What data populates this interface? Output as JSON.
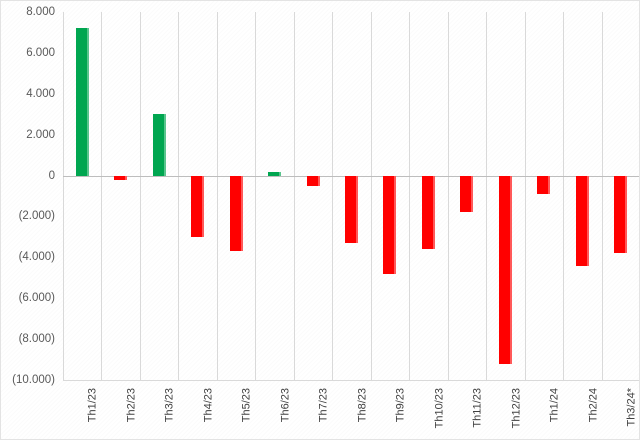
{
  "chart_style": {
    "background": "#ffffff",
    "border_color": "#e3e3e3",
    "gridline_color": "#d9d9d9",
    "zero_line_color": "#bdbdbd",
    "axis_text_color": "#595959",
    "positive_color": "#00a650",
    "negative_color": "#ff0000"
  },
  "chart_data": {
    "type": "bar",
    "title": "",
    "xlabel": "",
    "ylabel": "",
    "categories": [
      "Th1/23",
      "Th2/23",
      "Th3/23",
      "Th4/23",
      "Th5/23",
      "Th6/23",
      "Th7/23",
      "Th8/23",
      "Th9/23",
      "Th10/23",
      "Th11/23",
      "Th12/23",
      "Th1/24",
      "Th2/24",
      "Th3/24*"
    ],
    "values": [
      7200,
      -200,
      3000,
      -3000,
      -3700,
      150,
      -500,
      -3300,
      -4800,
      -3600,
      -1800,
      -9200,
      -900,
      -4400,
      -3800
    ],
    "ylim": [
      -10000,
      8000
    ],
    "y_ticks": [
      {
        "value": 8000,
        "label": "8.000"
      },
      {
        "value": 6000,
        "label": "6.000"
      },
      {
        "value": 4000,
        "label": "4.000"
      },
      {
        "value": 2000,
        "label": "2.000"
      },
      {
        "value": 0,
        "label": "0"
      },
      {
        "value": -2000,
        "label": "(2.000)"
      },
      {
        "value": -4000,
        "label": "(4.000)"
      },
      {
        "value": -6000,
        "label": "(6.000)"
      },
      {
        "value": -8000,
        "label": "(8.000)"
      },
      {
        "value": -10000,
        "label": "(10.000)"
      }
    ],
    "grid": "vertical category gridlines only; horizontal line at zero and plot bottom",
    "legend": "none",
    "bar_color_rule": "green when value >= 0, red when value < 0",
    "number_format": "dot thousands separator, negatives in parentheses",
    "category_label_rotation_deg": 90
  }
}
